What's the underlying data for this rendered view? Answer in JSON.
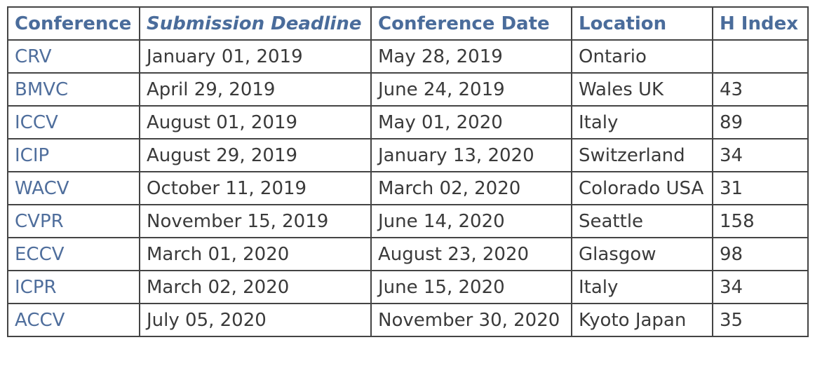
{
  "table": {
    "headers": [
      "Conference",
      "Submission Deadline",
      "Conference Date",
      "Location",
      "H Index"
    ],
    "rows": [
      [
        "CRV",
        "January 01, 2019",
        "May 28, 2019",
        "Ontario",
        ""
      ],
      [
        "BMVC",
        "April 29, 2019",
        "June 24, 2019",
        "Wales UK",
        "43"
      ],
      [
        "ICCV",
        "August 01, 2019",
        "May 01, 2020",
        "Italy",
        "89"
      ],
      [
        "ICIP",
        "August 29, 2019",
        "January 13, 2020",
        "Switzerland",
        "34"
      ],
      [
        "WACV",
        "October 11, 2019",
        "March 02, 2020",
        "Colorado USA",
        "31"
      ],
      [
        "CVPR",
        "November 15, 2019",
        "June 14, 2020",
        "Seattle",
        "158"
      ],
      [
        "ECCV",
        "March 01, 2020",
        "August 23, 2020",
        "Glasgow",
        "98"
      ],
      [
        "ICPR",
        "March 02, 2020",
        "June 15, 2020",
        "Italy",
        "34"
      ],
      [
        "ACCV",
        "July 05, 2020",
        "November 30, 2020",
        "Kyoto Japan",
        "35"
      ]
    ]
  },
  "colors": {
    "header_text": "#4a6c9b",
    "conference_name_text": "#4f6e9c",
    "body_text": "#3a3a3a",
    "border": "#444444"
  }
}
